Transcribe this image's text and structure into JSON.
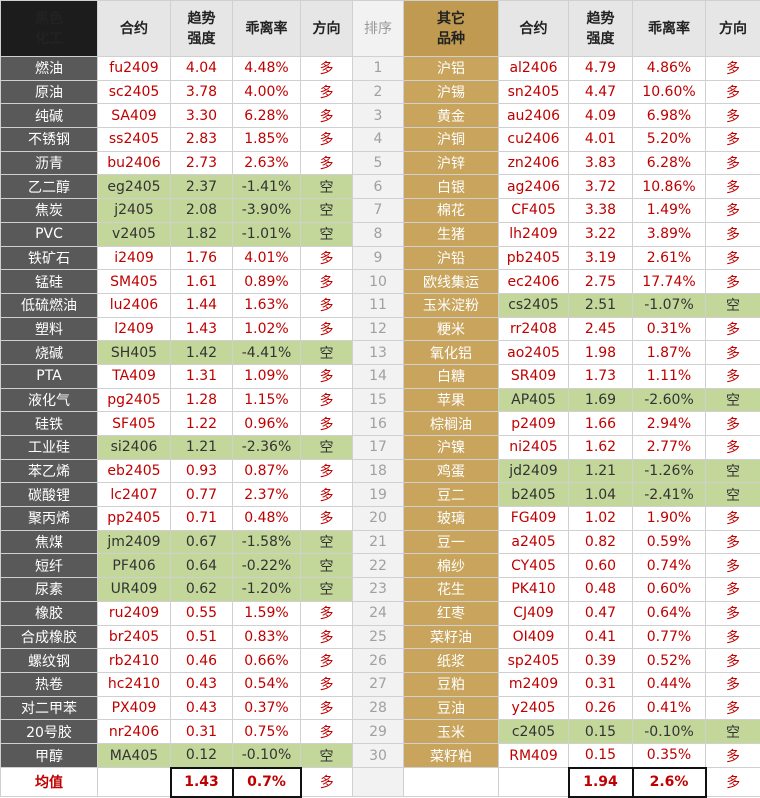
{
  "left": {
    "header": [
      "黑色化工",
      "合约",
      "趋势强度",
      "乖离率",
      "方向"
    ],
    "rows": [
      [
        "燃油",
        "fu2409",
        "4.04",
        "4.48%",
        "多"
      ],
      [
        "原油",
        "sc2405",
        "3.78",
        "4.00%",
        "多"
      ],
      [
        "纯碱",
        "SA409",
        "3.30",
        "6.28%",
        "多"
      ],
      [
        "不锈钢",
        "ss2405",
        "2.83",
        "1.85%",
        "多"
      ],
      [
        "沥青",
        "bu2406",
        "2.73",
        "2.63%",
        "多"
      ],
      [
        "乙二醇",
        "eg2405",
        "2.37",
        "-1.41%",
        "空"
      ],
      [
        "焦炭",
        "j2405",
        "2.08",
        "-3.90%",
        "空"
      ],
      [
        "PVC",
        "v2405",
        "1.82",
        "-1.01%",
        "空"
      ],
      [
        "铁矿石",
        "i2409",
        "1.76",
        "4.01%",
        "多"
      ],
      [
        "锰硅",
        "SM405",
        "1.61",
        "0.89%",
        "多"
      ],
      [
        "低硫燃油",
        "lu2406",
        "1.44",
        "1.63%",
        "多"
      ],
      [
        "塑料",
        "l2409",
        "1.43",
        "1.02%",
        "多"
      ],
      [
        "烧碱",
        "SH405",
        "1.42",
        "-4.41%",
        "空"
      ],
      [
        "PTA",
        "TA409",
        "1.31",
        "1.09%",
        "多"
      ],
      [
        "液化气",
        "pg2405",
        "1.28",
        "1.15%",
        "多"
      ],
      [
        "硅铁",
        "SF405",
        "1.22",
        "0.96%",
        "多"
      ],
      [
        "工业硅",
        "si2406",
        "1.21",
        "-2.36%",
        "空"
      ],
      [
        "苯乙烯",
        "eb2405",
        "0.93",
        "0.87%",
        "多"
      ],
      [
        "碳酸锂",
        "lc2407",
        "0.77",
        "2.37%",
        "多"
      ],
      [
        "聚丙烯",
        "pp2405",
        "0.71",
        "0.48%",
        "多"
      ],
      [
        "焦煤",
        "jm2409",
        "0.67",
        "-1.58%",
        "空"
      ],
      [
        "短纤",
        "PF406",
        "0.64",
        "-0.22%",
        "空"
      ],
      [
        "尿素",
        "UR409",
        "0.62",
        "-1.20%",
        "空"
      ],
      [
        "橡胶",
        "ru2409",
        "0.55",
        "1.59%",
        "多"
      ],
      [
        "合成橡胶",
        "br2405",
        "0.51",
        "0.83%",
        "多"
      ],
      [
        "螺纹钢",
        "rb2410",
        "0.46",
        "0.66%",
        "多"
      ],
      [
        "热卷",
        "hc2410",
        "0.43",
        "0.54%",
        "多"
      ],
      [
        "对二甲苯",
        "PX409",
        "0.43",
        "0.37%",
        "多"
      ],
      [
        "20号胶",
        "nr2406",
        "0.31",
        "0.75%",
        "多"
      ],
      [
        "甲醇",
        "MA405",
        "0.12",
        "-0.10%",
        "空"
      ]
    ],
    "footer": {
      "label": "均值",
      "strength": "1.43",
      "deviation": "0.7%",
      "direction": "多"
    }
  },
  "sort": {
    "header": "排序",
    "rows": [
      "1",
      "2",
      "3",
      "4",
      "5",
      "6",
      "7",
      "8",
      "9",
      "10",
      "11",
      "12",
      "13",
      "14",
      "15",
      "16",
      "17",
      "18",
      "19",
      "20",
      "21",
      "22",
      "23",
      "24",
      "25",
      "26",
      "27",
      "28",
      "29",
      "30"
    ]
  },
  "right": {
    "header": [
      "其它品种",
      "合约",
      "趋势强度",
      "乖离率",
      "方向"
    ],
    "rows": [
      [
        "沪铝",
        "al2406",
        "4.79",
        "4.86%",
        "多"
      ],
      [
        "沪锡",
        "sn2405",
        "4.47",
        "10.60%",
        "多"
      ],
      [
        "黄金",
        "au2406",
        "4.09",
        "6.98%",
        "多"
      ],
      [
        "沪铜",
        "cu2406",
        "4.01",
        "5.20%",
        "多"
      ],
      [
        "沪锌",
        "zn2406",
        "3.83",
        "6.28%",
        "多"
      ],
      [
        "白银",
        "ag2406",
        "3.72",
        "10.86%",
        "多"
      ],
      [
        "棉花",
        "CF405",
        "3.38",
        "1.49%",
        "多"
      ],
      [
        "生猪",
        "lh2409",
        "3.22",
        "3.89%",
        "多"
      ],
      [
        "沪铅",
        "pb2405",
        "3.19",
        "2.61%",
        "多"
      ],
      [
        "欧线集运",
        "ec2406",
        "2.75",
        "17.74%",
        "多"
      ],
      [
        "玉米淀粉",
        "cs2405",
        "2.51",
        "-1.07%",
        "空"
      ],
      [
        "粳米",
        "rr2408",
        "2.45",
        "0.31%",
        "多"
      ],
      [
        "氧化铝",
        "ao2405",
        "1.98",
        "1.87%",
        "多"
      ],
      [
        "白糖",
        "SR409",
        "1.73",
        "1.11%",
        "多"
      ],
      [
        "苹果",
        "AP405",
        "1.69",
        "-2.60%",
        "空"
      ],
      [
        "棕榈油",
        "p2409",
        "1.66",
        "2.94%",
        "多"
      ],
      [
        "沪镍",
        "ni2405",
        "1.62",
        "2.77%",
        "多"
      ],
      [
        "鸡蛋",
        "jd2409",
        "1.21",
        "-1.26%",
        "空"
      ],
      [
        "豆二",
        "b2405",
        "1.04",
        "-2.41%",
        "空"
      ],
      [
        "玻璃",
        "FG409",
        "1.02",
        "1.90%",
        "多"
      ],
      [
        "豆一",
        "a2405",
        "0.82",
        "0.59%",
        "多"
      ],
      [
        "棉纱",
        "CY405",
        "0.60",
        "0.74%",
        "多"
      ],
      [
        "花生",
        "PK410",
        "0.48",
        "0.60%",
        "多"
      ],
      [
        "红枣",
        "CJ409",
        "0.47",
        "0.64%",
        "多"
      ],
      [
        "菜籽油",
        "OI409",
        "0.41",
        "0.77%",
        "多"
      ],
      [
        "纸浆",
        "sp2405",
        "0.39",
        "0.52%",
        "多"
      ],
      [
        "豆粕",
        "m2409",
        "0.31",
        "0.44%",
        "多"
      ],
      [
        "豆油",
        "y2405",
        "0.26",
        "0.41%",
        "多"
      ],
      [
        "玉米",
        "c2405",
        "0.15",
        "-0.10%",
        "空"
      ],
      [
        "菜籽粕",
        "RM409",
        "0.15",
        "0.35%",
        "多"
      ]
    ],
    "footer": {
      "strength": "1.94",
      "deviation": "2.6%",
      "direction": "多"
    }
  }
}
